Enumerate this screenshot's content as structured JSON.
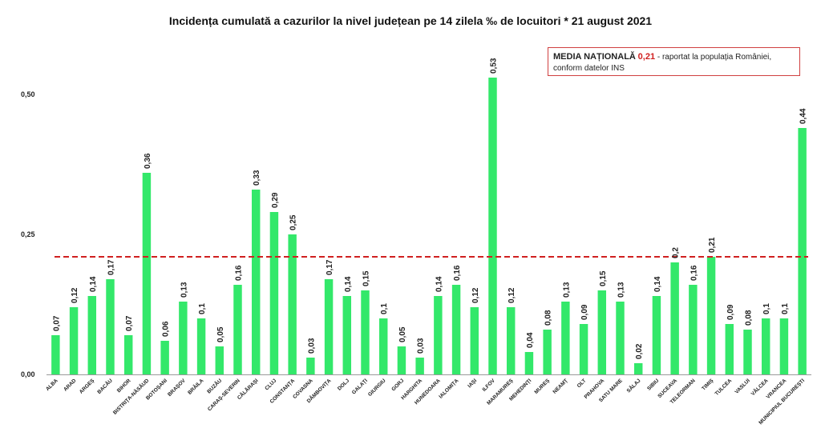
{
  "chart_data": {
    "type": "bar",
    "title": "Incidența cumulată a cazurilor la nivel județean pe 14 zilela ‰ de locuitori *  21 august 2021",
    "xlabel": "",
    "ylabel": "",
    "ylim": [
      0,
      0.5
    ],
    "yticks": [
      "0,00",
      "0,25",
      "0,50"
    ],
    "yticks_values": [
      0,
      0.25,
      0.5
    ],
    "grid": false,
    "bar_color": "#33e86a",
    "reference_line": {
      "value": 0.21,
      "color": "#d02020",
      "style": "dashed"
    },
    "categories": [
      "ALBA",
      "ARAD",
      "ARGEȘ",
      "BACĂU",
      "BIHOR",
      "BISTRIȚA-NĂSĂUD",
      "BOTOȘANI",
      "BRAȘOV",
      "BRĂILA",
      "BUZĂU",
      "CARAȘ-SEVERIN",
      "CĂLĂRAȘI",
      "CLUJ",
      "CONSTANȚA",
      "COVASNA",
      "DÂMBOVIȚA",
      "DOLJ",
      "GALAȚI",
      "GIURGIU",
      "GORJ",
      "HARGHITA",
      "HUNEDOARA",
      "IALOMIȚA",
      "IAȘI",
      "ILFOV",
      "MARAMUREȘ",
      "MEHEDINȚI",
      "MUREȘ",
      "NEAMȚ",
      "OLT",
      "PRAHOVA",
      "SATU MARE",
      "SĂLAJ",
      "SIBIU",
      "SUCEAVA",
      "TELEORMAN",
      "TIMIȘ",
      "TULCEA",
      "VASLUI",
      "VÂLCEA",
      "VRANCEA",
      "MUNICIPIUL BUCUREȘTI"
    ],
    "values": [
      0.07,
      0.12,
      0.14,
      0.17,
      0.07,
      0.36,
      0.06,
      0.13,
      0.1,
      0.05,
      0.16,
      0.33,
      0.29,
      0.25,
      0.03,
      0.17,
      0.14,
      0.15,
      0.1,
      0.05,
      0.03,
      0.14,
      0.16,
      0.12,
      0.53,
      0.12,
      0.04,
      0.08,
      0.13,
      0.09,
      0.15,
      0.13,
      0.02,
      0.14,
      0.2,
      0.16,
      0.21,
      0.09,
      0.08,
      0.1,
      0.1,
      0.44
    ],
    "data_labels": [
      "0,07",
      "0,12",
      "0,14",
      "0,17",
      "0,07",
      "0,36",
      "0,06",
      "0,13",
      "0,1",
      "0,05",
      "0,16",
      "0,33",
      "0,29",
      "0,25",
      "0,03",
      "0,17",
      "0,14",
      "0,15",
      "0,1",
      "0,05",
      "0,03",
      "0,14",
      "0,16",
      "0,12",
      "0,53",
      "0,12",
      "0,04",
      "0,08",
      "0,13",
      "0,09",
      "0,15",
      "0,13",
      "0,02",
      "0,14",
      "0,2",
      "0,16",
      "0,21",
      "0,09",
      "0,08",
      "0,1",
      "0,1",
      "0,44"
    ]
  },
  "legend": {
    "label_bold": "MEDIA NAȚIONALĂ",
    "value": "0,21",
    "text_line1": " - raportat la populația României,",
    "text_line2": "conform datelor INS"
  }
}
